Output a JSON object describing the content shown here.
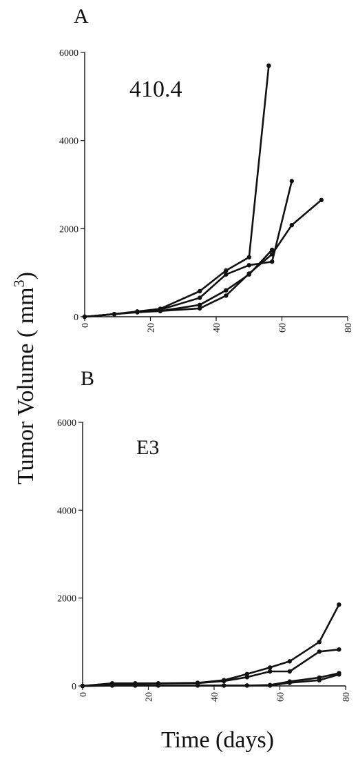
{
  "figure": {
    "ylabel_text": "Tumor Volume ( mm",
    "ylabel_sup": "3",
    "ylabel_close": ")",
    "xlabel": "Time (days)"
  },
  "chart_data": [
    {
      "type": "line",
      "panel_label": "A",
      "annotation": "410.4",
      "xlabel": "Time (days)",
      "ylabel": "Tumor Volume ( mm3)",
      "xlim": [
        0,
        80
      ],
      "ylim": [
        0,
        6000
      ],
      "x_ticks": [
        "0",
        "20",
        "40",
        "60",
        "80"
      ],
      "y_ticks": [
        "0",
        "2000",
        "4000",
        "6000"
      ],
      "series": [
        {
          "x": [
            0,
            9,
            16,
            23,
            35,
            43,
            50,
            56
          ],
          "y": [
            0,
            60,
            120,
            180,
            580,
            1050,
            1350,
            5700
          ]
        },
        {
          "x": [
            0,
            9,
            16,
            23,
            35,
            43,
            50,
            57,
            63
          ],
          "y": [
            0,
            60,
            110,
            160,
            430,
            960,
            1170,
            1250,
            3080
          ]
        },
        {
          "x": [
            0,
            9,
            16,
            23,
            35,
            43,
            50,
            57
          ],
          "y": [
            0,
            60,
            100,
            130,
            270,
            600,
            960,
            1520
          ]
        },
        {
          "x": [
            0,
            9,
            16,
            23,
            35,
            43,
            50,
            57,
            63,
            72
          ],
          "y": [
            0,
            60,
            110,
            130,
            190,
            480,
            980,
            1420,
            2080,
            2650
          ]
        }
      ]
    },
    {
      "type": "line",
      "panel_label": "B",
      "annotation": "E3",
      "xlabel": "Time (days)",
      "ylabel": "Tumor Volume ( mm3)",
      "xlim": [
        0,
        80
      ],
      "ylim": [
        0,
        6000
      ],
      "x_ticks": [
        "0",
        "20",
        "40",
        "60",
        "80"
      ],
      "y_ticks": [
        "0",
        "2000",
        "4000",
        "6000"
      ],
      "series": [
        {
          "x": [
            0,
            9,
            16,
            23,
            35,
            43,
            50,
            57,
            63,
            72,
            78
          ],
          "y": [
            0,
            60,
            60,
            60,
            70,
            130,
            270,
            420,
            560,
            1000,
            1850
          ]
        },
        {
          "x": [
            0,
            9,
            16,
            23,
            35,
            43,
            50,
            57,
            63,
            72,
            78
          ],
          "y": [
            0,
            50,
            50,
            55,
            65,
            110,
            200,
            330,
            330,
            780,
            830
          ]
        },
        {
          "x": [
            0,
            9,
            16,
            23,
            35,
            43,
            50,
            57,
            63,
            72,
            78
          ],
          "y": [
            0,
            10,
            10,
            10,
            10,
            10,
            10,
            20,
            100,
            190,
            290
          ]
        },
        {
          "x": [
            0,
            9,
            16,
            23,
            35,
            43,
            50,
            57,
            63,
            72,
            78
          ],
          "y": [
            0,
            10,
            10,
            10,
            10,
            10,
            10,
            10,
            70,
            130,
            260
          ]
        }
      ]
    }
  ]
}
